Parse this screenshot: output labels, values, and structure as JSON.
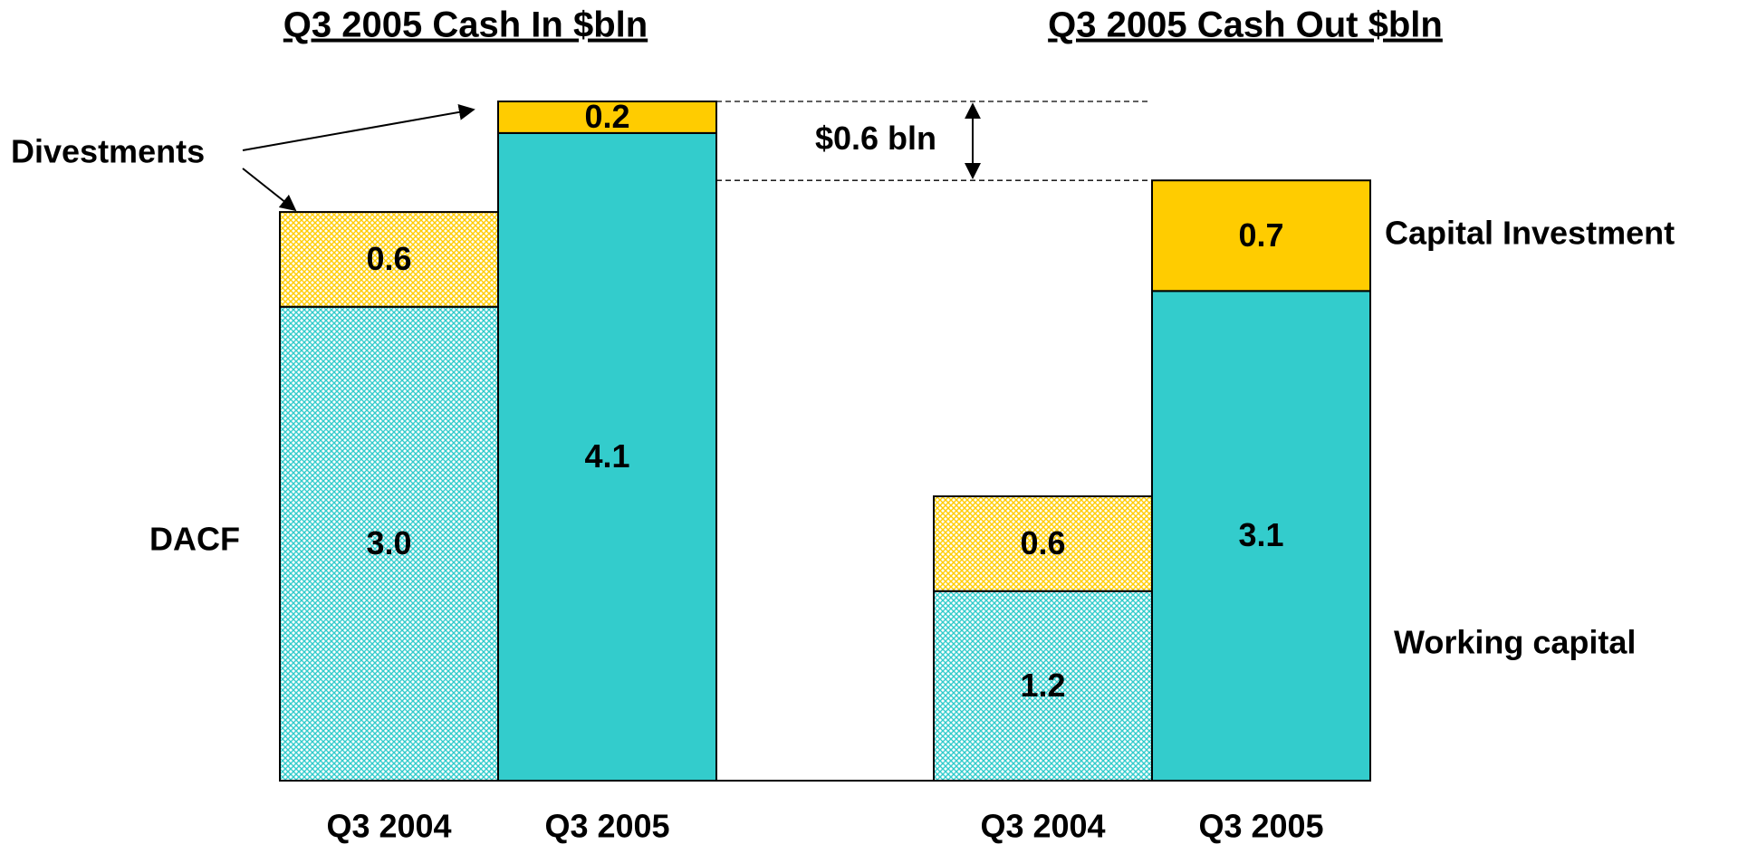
{
  "chart_data": [
    {
      "type": "stacked_bar",
      "title": "Q3 2005 Cash In $bln",
      "categories": [
        "Q3 2004",
        "Q3 2005"
      ],
      "series": [
        {
          "name": "DACF",
          "color": "#33cccc",
          "values": [
            3.0,
            4.1
          ],
          "value_labels": [
            "3.0",
            "4.1"
          ]
        },
        {
          "name": "Divestments",
          "color": "#ffcc00",
          "values": [
            0.6,
            0.2
          ],
          "value_labels": [
            "0.6",
            "0.2"
          ]
        }
      ]
    },
    {
      "type": "stacked_bar",
      "title": "Q3 2005 Cash Out $bln",
      "categories": [
        "Q3 2004",
        "Q3 2005"
      ],
      "series": [
        {
          "name": "Working capital",
          "color": "#33cccc",
          "values": [
            1.2,
            3.1
          ],
          "value_labels": [
            "1.2",
            "3.1"
          ]
        },
        {
          "name": "Capital Investment",
          "color": "#ffcc00",
          "values": [
            0.6,
            0.7
          ],
          "value_labels": [
            "0.6",
            "0.7"
          ]
        }
      ]
    }
  ],
  "annotation": "$0.6 bln"
}
